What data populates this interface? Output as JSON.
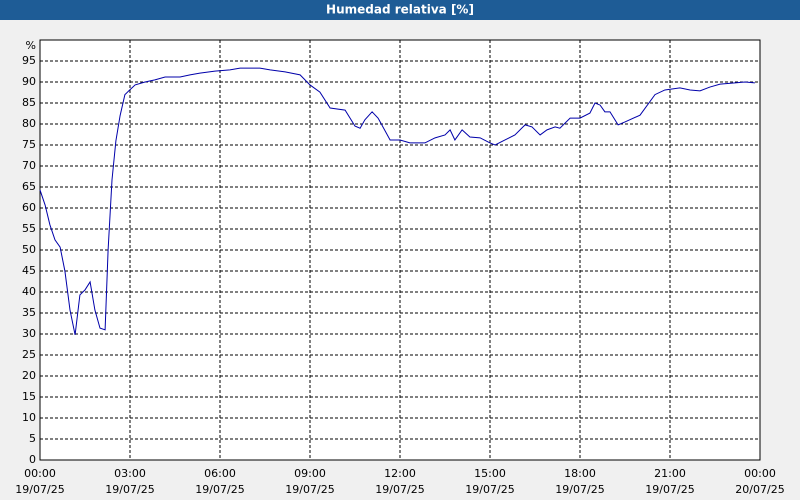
{
  "chart_data": {
    "type": "line",
    "title": "Humedad relativa [%]",
    "ylabel": "%",
    "x": [
      0,
      0.17,
      0.33,
      0.5,
      0.67,
      0.83,
      1,
      1.17,
      1.33,
      1.5,
      1.67,
      1.83,
      2,
      2.17,
      2.27,
      2.4,
      2.53,
      2.67,
      2.83,
      3.17,
      3.5,
      3.83,
      4.17,
      4.67,
      5,
      5.33,
      5.83,
      6.33,
      6.67,
      7.33,
      7.67,
      8.17,
      8.67,
      9,
      9.33,
      9.67,
      10.17,
      10.5,
      10.67,
      10.83,
      11.07,
      11.27,
      11.67,
      12,
      12.33,
      12.83,
      13.17,
      13.5,
      13.67,
      13.83,
      14.07,
      14.33,
      14.67,
      15,
      15.17,
      15.5,
      15.83,
      16.17,
      16.4,
      16.67,
      16.9,
      17.17,
      17.33,
      17.67,
      18,
      18.33,
      18.5,
      18.67,
      18.83,
      19,
      19.27,
      19.5,
      20,
      20.5,
      20.83,
      21.33,
      21.67,
      22,
      22.33,
      22.67,
      23.17,
      23.5,
      23.83
    ],
    "values": [
      64.3,
      60.7,
      56,
      52.4,
      50.7,
      45,
      35.7,
      29.8,
      39.3,
      40.5,
      42.4,
      35.7,
      31.4,
      31,
      50,
      66.7,
      76,
      82,
      87,
      89.3,
      90,
      90.5,
      91.2,
      91.2,
      91.7,
      92.1,
      92.6,
      92.9,
      93.3,
      93.3,
      92.9,
      92.4,
      91.7,
      89.3,
      87.6,
      83.8,
      83.3,
      79.5,
      79,
      81,
      82.9,
      81.4,
      76.2,
      76.2,
      75.5,
      75.5,
      76.7,
      77.4,
      78.6,
      76.2,
      78.6,
      76.9,
      76.7,
      75.5,
      75,
      76.2,
      77.4,
      79.8,
      79.3,
      77.4,
      78.6,
      79.3,
      79,
      81.4,
      81.4,
      82.6,
      85,
      84.5,
      82.9,
      82.9,
      79.8,
      80.5,
      82.1,
      87,
      88.1,
      88.6,
      88.1,
      87.9,
      88.8,
      89.5,
      89.8,
      90,
      89.8
    ],
    "color": "#0000aa",
    "xlim": [
      0,
      24
    ],
    "xticks": [
      {
        "value": 0,
        "label": "00:00",
        "sublabel": "19/07/25"
      },
      {
        "value": 3,
        "label": "03:00",
        "sublabel": "19/07/25"
      },
      {
        "value": 6,
        "label": "06:00",
        "sublabel": "19/07/25"
      },
      {
        "value": 9,
        "label": "09:00",
        "sublabel": "19/07/25"
      },
      {
        "value": 12,
        "label": "12:00",
        "sublabel": "19/07/25"
      },
      {
        "value": 15,
        "label": "15:00",
        "sublabel": "19/07/25"
      },
      {
        "value": 18,
        "label": "18:00",
        "sublabel": "19/07/25"
      },
      {
        "value": 21,
        "label": "21:00",
        "sublabel": "19/07/25"
      },
      {
        "value": 24,
        "label": "00:00",
        "sublabel": "20/07/25"
      }
    ],
    "ylim": [
      0,
      100
    ],
    "yticks": [
      0,
      5,
      10,
      15,
      20,
      25,
      30,
      35,
      40,
      45,
      50,
      55,
      60,
      65,
      70,
      75,
      80,
      85,
      90,
      95
    ],
    "grid": true
  }
}
